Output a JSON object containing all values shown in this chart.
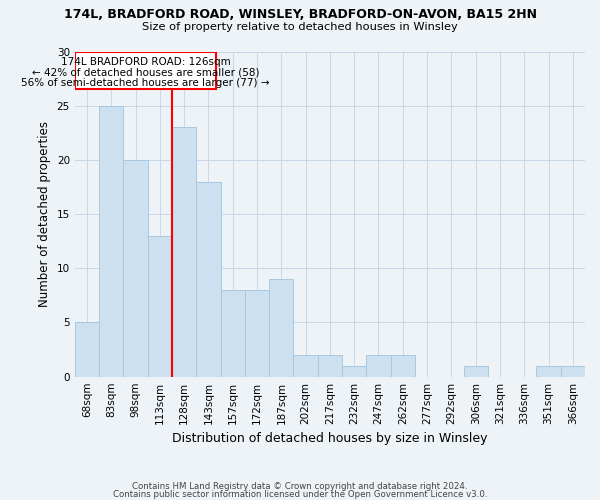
{
  "title1": "174L, BRADFORD ROAD, WINSLEY, BRADFORD-ON-AVON, BA15 2HN",
  "title2": "Size of property relative to detached houses in Winsley",
  "xlabel": "Distribution of detached houses by size in Winsley",
  "ylabel": "Number of detached properties",
  "footer1": "Contains HM Land Registry data © Crown copyright and database right 2024.",
  "footer2": "Contains public sector information licensed under the Open Government Licence v3.0.",
  "annotation_line1": "174L BRADFORD ROAD: 126sqm",
  "annotation_line2": "← 42% of detached houses are smaller (58)",
  "annotation_line3": "56% of semi-detached houses are larger (77) →",
  "bar_categories": [
    "68sqm",
    "83sqm",
    "98sqm",
    "113sqm",
    "128sqm",
    "143sqm",
    "157sqm",
    "172sqm",
    "187sqm",
    "202sqm",
    "217sqm",
    "232sqm",
    "247sqm",
    "262sqm",
    "277sqm",
    "292sqm",
    "306sqm",
    "321sqm",
    "336sqm",
    "351sqm",
    "366sqm"
  ],
  "bar_values": [
    5,
    25,
    20,
    13,
    23,
    18,
    8,
    8,
    9,
    2,
    2,
    1,
    2,
    2,
    0,
    0,
    1,
    0,
    0,
    1,
    1
  ],
  "bar_color": "#cce0f0",
  "bar_edgecolor": "#a8c8e0",
  "ylim": [
    0,
    30
  ],
  "yticks": [
    0,
    5,
    10,
    15,
    20,
    25,
    30
  ],
  "background_color": "#eef3f8",
  "grid_color": "#c8d8e8"
}
